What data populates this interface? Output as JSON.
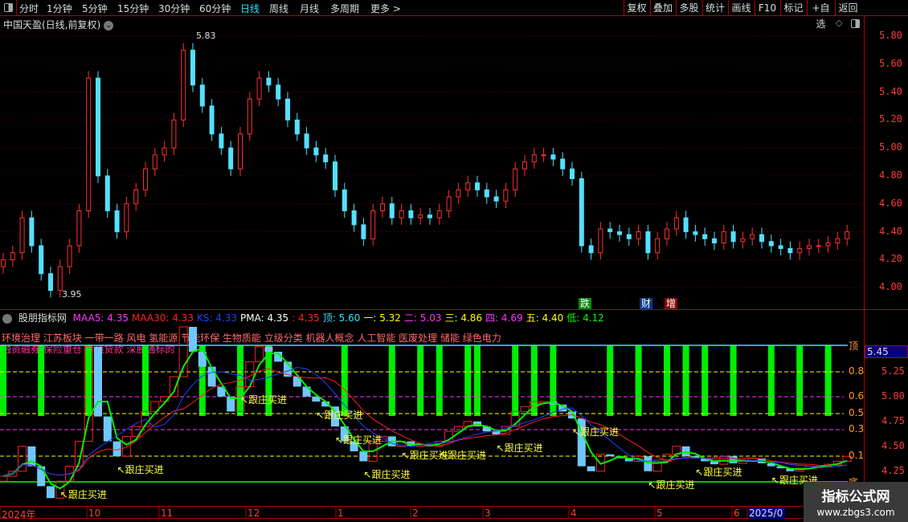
{
  "toolbar": {
    "periods": [
      "分时",
      "1分钟",
      "5分钟",
      "15分钟",
      "30分钟",
      "60分钟",
      "日线",
      "周线",
      "月线",
      "多周期",
      "更多 >"
    ],
    "active_period": "日线",
    "buttons": [
      "复权",
      "叠加",
      "多股",
      "统计",
      "画线",
      "F10",
      "标记",
      "+自选",
      "返回"
    ]
  },
  "main": {
    "title": "中国天盈(日线,前复权)",
    "price_ticks": [
      "5.80",
      "5.60",
      "5.40",
      "5.20",
      "5.00",
      "4.80",
      "4.60",
      "4.40",
      "4.20",
      "4.00"
    ],
    "max_label": "5.83",
    "min_label": "3.95",
    "event_tags": [
      {
        "text": "跌",
        "color": "#0a8a0a"
      },
      {
        "text": "财",
        "color": "#0a3a7a"
      },
      {
        "text": "增",
        "color": "#8a0a0a"
      }
    ]
  },
  "indicator": {
    "name": "股朋指标网",
    "legend": [
      {
        "label": "MAA5: 4.35",
        "color": "#ff33ff"
      },
      {
        "label": "MAA30: 4.33",
        "color": "#ff2020"
      },
      {
        "label": "KS: 4.33",
        "color": "#2040ff"
      },
      {
        "label": "PMA: 4.35",
        "color": "#ffffff"
      },
      {
        "label": ": 4.35",
        "color": "#ff2020"
      },
      {
        "label": "顶: 5.60",
        "color": "#2ee6ff"
      },
      {
        "label": "一: 5.32",
        "color": "#ffff00"
      },
      {
        "label": "二: 5.03",
        "color": "#ff33ff"
      },
      {
        "label": "三: 4.86",
        "color": "#ffff00"
      },
      {
        "label": "四: 4.69",
        "color": "#ff33ff"
      },
      {
        "label": "五: 4.40",
        "color": "#ffff00"
      },
      {
        "label": "低: 4.12",
        "color": "#00ff00"
      }
    ],
    "concepts_line1": "环境治理 江苏板块 一带一路 风电 氢能源 节能环保 生物质能 立级分类 机器人概念 人工智能 医废处理 储能 绿色电力",
    "concepts_line2": "融资融券 保险重仓 专项贷款 深股通标的",
    "levels": [
      "顶",
      "0.8",
      "0.6",
      "0.5",
      "0.3",
      "0.1",
      "底"
    ],
    "scale_ticks": [
      "5.25",
      "5.00",
      "4.75",
      "4.50",
      "4.25"
    ],
    "current_value": "5.45",
    "buy_label": "↖跟庄买进"
  },
  "date_axis": [
    "2024年",
    "10",
    "11",
    "12",
    "1",
    "2",
    "3",
    "4",
    "5",
    "6",
    "2025/0"
  ],
  "watermark": {
    "title": "指标公式网",
    "url": "www.zbgs3.com"
  },
  "chart_data": {
    "type": "candlestick",
    "ylim": [
      3.9,
      5.9
    ],
    "close": [
      4.2,
      4.25,
      4.5,
      4.3,
      4.1,
      3.98,
      4.15,
      4.3,
      4.55,
      5.5,
      4.8,
      4.55,
      4.4,
      4.6,
      4.7,
      4.85,
      4.95,
      5.0,
      5.2,
      5.7,
      5.45,
      5.3,
      5.1,
      5.0,
      4.85,
      5.1,
      5.35,
      5.5,
      5.45,
      5.35,
      5.2,
      5.1,
      5.0,
      4.95,
      4.9,
      4.7,
      4.55,
      4.45,
      4.35,
      4.55,
      4.6,
      4.5,
      4.55,
      4.5,
      4.52,
      4.5,
      4.55,
      4.65,
      4.7,
      4.75,
      4.7,
      4.65,
      4.62,
      4.7,
      4.85,
      4.9,
      4.95,
      4.95,
      4.92,
      4.85,
      4.78,
      4.3,
      4.25,
      4.42,
      4.4,
      4.38,
      4.35,
      4.4,
      4.25,
      4.35,
      4.42,
      4.5,
      4.4,
      4.38,
      4.35,
      4.32,
      4.4,
      4.33,
      4.35,
      4.38,
      4.33,
      4.3,
      4.28,
      4.25,
      4.28,
      4.3,
      4.3,
      4.32,
      4.35,
      4.4
    ],
    "signal_bars": [
      0,
      4,
      9,
      15,
      21,
      25,
      28,
      36,
      41,
      44,
      46,
      49,
      50,
      54,
      56,
      58,
      64,
      67,
      70,
      72,
      74,
      77,
      81,
      84,
      87
    ],
    "buy_signals": [
      6,
      12,
      25,
      33,
      35,
      38,
      42,
      46,
      52,
      60,
      68,
      73,
      81
    ]
  }
}
